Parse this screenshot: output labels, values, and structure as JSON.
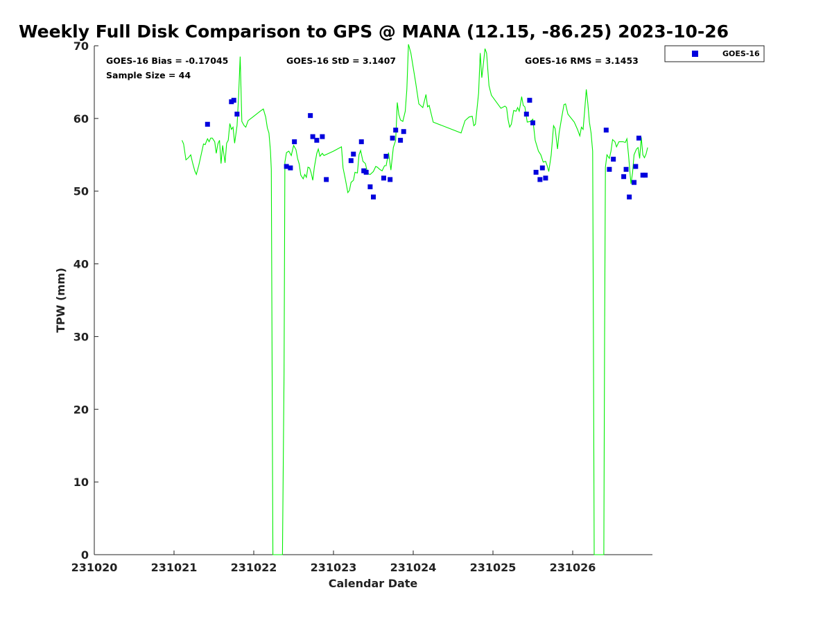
{
  "chart_data": {
    "type": "scatter",
    "title": "Weekly Full Disk Comparison to GPS @ MANA (12.15, -86.25) 2023-10-26",
    "xlabel": "Calendar Date",
    "ylabel": "TPW (mm)",
    "xlim": [
      231020,
      231027
    ],
    "ylim": [
      0,
      70
    ],
    "x_ticks": [
      "231020",
      "231021",
      "231022",
      "231023",
      "231024",
      "231025",
      "231026"
    ],
    "y_ticks": [
      "0",
      "10",
      "20",
      "30",
      "40",
      "50",
      "60",
      "70"
    ],
    "grid": false,
    "legend_position": "outside-top-right",
    "stats": {
      "bias": "GOES-16 Bias = -0.17045",
      "std": "GOES-16 StD = 3.1407",
      "rms": "GOES-16 RMS = 3.1453",
      "sample": "Sample Size = 44"
    },
    "colors": {
      "gps": "#00ee00",
      "goes": "#0000dd"
    },
    "series": [
      {
        "name": "GOES-16",
        "style": "markers",
        "color": "#0000dd",
        "points": [
          [
            231021.42,
            59.2
          ],
          [
            231021.72,
            62.3
          ],
          [
            231021.75,
            62.5
          ],
          [
            231021.79,
            60.6
          ],
          [
            231022.41,
            53.4
          ],
          [
            231022.46,
            53.2
          ],
          [
            231022.51,
            56.8
          ],
          [
            231022.71,
            60.4
          ],
          [
            231022.74,
            57.5
          ],
          [
            231022.79,
            57.0
          ],
          [
            231022.86,
            57.5
          ],
          [
            231022.91,
            51.6
          ],
          [
            231023.22,
            54.2
          ],
          [
            231023.25,
            55.1
          ],
          [
            231023.35,
            56.8
          ],
          [
            231023.38,
            52.8
          ],
          [
            231023.41,
            52.6
          ],
          [
            231023.46,
            50.6
          ],
          [
            231023.5,
            49.2
          ],
          [
            231023.63,
            51.8
          ],
          [
            231023.66,
            54.8
          ],
          [
            231023.71,
            51.6
          ],
          [
            231023.74,
            57.3
          ],
          [
            231023.78,
            58.4
          ],
          [
            231023.84,
            57.0
          ],
          [
            231023.88,
            58.2
          ],
          [
            231025.42,
            60.6
          ],
          [
            231025.46,
            62.5
          ],
          [
            231025.5,
            59.4
          ],
          [
            231025.54,
            52.6
          ],
          [
            231025.59,
            51.6
          ],
          [
            231025.62,
            53.2
          ],
          [
            231025.66,
            51.8
          ],
          [
            231026.42,
            58.4
          ],
          [
            231026.46,
            53.0
          ],
          [
            231026.51,
            54.4
          ],
          [
            231026.64,
            52.0
          ],
          [
            231026.67,
            53.0
          ],
          [
            231026.71,
            49.2
          ],
          [
            231026.77,
            51.2
          ],
          [
            231026.79,
            53.4
          ],
          [
            231026.83,
            57.3
          ],
          [
            231026.88,
            52.2
          ],
          [
            231026.91,
            52.2
          ]
        ]
      },
      {
        "style": "line",
        "color": "#00ee00",
        "points": [
          [
            231021.1,
            57.0
          ],
          [
            231021.12,
            56.5
          ],
          [
            231021.15,
            54.3
          ],
          [
            231021.18,
            54.6
          ],
          [
            231021.21,
            55.0
          ],
          [
            231021.23,
            54.0
          ],
          [
            231021.26,
            52.8
          ],
          [
            231021.28,
            52.3
          ],
          [
            231021.31,
            53.5
          ],
          [
            231021.34,
            55.0
          ],
          [
            231021.37,
            56.5
          ],
          [
            231021.39,
            56.4
          ],
          [
            231021.42,
            57.2
          ],
          [
            231021.44,
            56.8
          ],
          [
            231021.46,
            57.3
          ],
          [
            231021.48,
            57.3
          ],
          [
            231021.51,
            56.8
          ],
          [
            231021.53,
            55.2
          ],
          [
            231021.55,
            56.5
          ],
          [
            231021.57,
            57.0
          ],
          [
            231021.59,
            53.8
          ],
          [
            231021.61,
            56.3
          ],
          [
            231021.64,
            53.9
          ],
          [
            231021.66,
            56.6
          ],
          [
            231021.68,
            57.0
          ],
          [
            231021.7,
            59.3
          ],
          [
            231021.72,
            58.5
          ],
          [
            231021.74,
            58.8
          ],
          [
            231021.76,
            56.6
          ],
          [
            231021.79,
            59.0
          ],
          [
            231021.81,
            63.0
          ],
          [
            231021.83,
            68.5
          ],
          [
            231021.85,
            59.6
          ],
          [
            231021.88,
            59.0
          ],
          [
            231021.9,
            58.8
          ],
          [
            231021.93,
            59.7
          ],
          [
            231022.0,
            60.3
          ],
          [
            231022.08,
            61.0
          ],
          [
            231022.12,
            61.3
          ],
          [
            231022.15,
            60.2
          ],
          [
            231022.17,
            58.7
          ],
          [
            231022.19,
            58.0
          ],
          [
            231022.21,
            55.5
          ],
          [
            231022.22,
            53.0
          ],
          [
            231022.23,
            25.0
          ],
          [
            231022.24,
            0.0
          ],
          [
            231022.36,
            0.0
          ],
          [
            231022.38,
            25.0
          ],
          [
            231022.39,
            54.0
          ],
          [
            231022.41,
            55.3
          ],
          [
            231022.44,
            55.5
          ],
          [
            231022.47,
            54.9
          ],
          [
            231022.5,
            56.3
          ],
          [
            231022.53,
            55.7
          ],
          [
            231022.55,
            54.5
          ],
          [
            231022.57,
            53.7
          ],
          [
            231022.59,
            52.2
          ],
          [
            231022.62,
            51.7
          ],
          [
            231022.64,
            52.3
          ],
          [
            231022.66,
            51.9
          ],
          [
            231022.68,
            53.3
          ],
          [
            231022.7,
            53.2
          ],
          [
            231022.72,
            52.5
          ],
          [
            231022.74,
            51.5
          ],
          [
            231022.76,
            53.3
          ],
          [
            231022.79,
            55.2
          ],
          [
            231022.81,
            55.8
          ],
          [
            231022.83,
            54.8
          ],
          [
            231022.86,
            55.2
          ],
          [
            231022.88,
            54.9
          ],
          [
            231022.92,
            55.1
          ],
          [
            231023.0,
            55.5
          ],
          [
            231023.1,
            56.1
          ],
          [
            231023.12,
            53.2
          ],
          [
            231023.15,
            51.6
          ],
          [
            231023.18,
            49.8
          ],
          [
            231023.2,
            50.1
          ],
          [
            231023.22,
            51.2
          ],
          [
            231023.25,
            51.5
          ],
          [
            231023.27,
            52.6
          ],
          [
            231023.3,
            52.5
          ],
          [
            231023.32,
            55.0
          ],
          [
            231023.34,
            55.6
          ],
          [
            231023.37,
            54.1
          ],
          [
            231023.4,
            53.8
          ],
          [
            231023.43,
            52.4
          ],
          [
            231023.46,
            52.3
          ],
          [
            231023.5,
            52.7
          ],
          [
            231023.53,
            53.4
          ],
          [
            231023.55,
            53.3
          ],
          [
            231023.58,
            53.0
          ],
          [
            231023.61,
            52.8
          ],
          [
            231023.64,
            53.5
          ],
          [
            231023.66,
            53.5
          ],
          [
            231023.69,
            55.3
          ],
          [
            231023.72,
            52.9
          ],
          [
            231023.75,
            56.0
          ],
          [
            231023.78,
            57.0
          ],
          [
            231023.8,
            62.2
          ],
          [
            231023.82,
            60.5
          ],
          [
            231023.84,
            59.8
          ],
          [
            231023.87,
            59.6
          ],
          [
            231023.9,
            61.0
          ],
          [
            231023.92,
            64.0
          ],
          [
            231023.94,
            70.2
          ],
          [
            231023.97,
            69.0
          ],
          [
            231024.0,
            67.0
          ],
          [
            231024.03,
            65.0
          ],
          [
            231024.07,
            62.0
          ],
          [
            231024.12,
            61.5
          ],
          [
            231024.16,
            63.3
          ],
          [
            231024.18,
            61.6
          ],
          [
            231024.2,
            61.8
          ],
          [
            231024.25,
            59.5
          ],
          [
            231024.6,
            58.0
          ],
          [
            231024.65,
            59.7
          ],
          [
            231024.7,
            60.2
          ],
          [
            231024.74,
            60.3
          ],
          [
            231024.76,
            59.0
          ],
          [
            231024.78,
            59.2
          ],
          [
            231024.82,
            63.5
          ],
          [
            231024.84,
            69.0
          ],
          [
            231024.86,
            65.6
          ],
          [
            231024.88,
            67.5
          ],
          [
            231024.9,
            69.6
          ],
          [
            231024.92,
            69.0
          ],
          [
            231024.95,
            64.5
          ],
          [
            231024.98,
            63.2
          ],
          [
            231025.06,
            62.0
          ],
          [
            231025.1,
            61.4
          ],
          [
            231025.15,
            61.7
          ],
          [
            231025.17,
            61.5
          ],
          [
            231025.19,
            59.8
          ],
          [
            231025.21,
            58.8
          ],
          [
            231025.23,
            59.2
          ],
          [
            231025.26,
            61.1
          ],
          [
            231025.29,
            61.0
          ],
          [
            231025.31,
            61.5
          ],
          [
            231025.33,
            61.0
          ],
          [
            231025.36,
            63.0
          ],
          [
            231025.38,
            61.8
          ],
          [
            231025.4,
            61.6
          ],
          [
            231025.43,
            59.5
          ],
          [
            231025.47,
            59.6
          ],
          [
            231025.5,
            59.9
          ],
          [
            231025.53,
            57.0
          ],
          [
            231025.57,
            55.5
          ],
          [
            231025.6,
            55.0
          ],
          [
            231025.63,
            54.0
          ],
          [
            231025.66,
            54.1
          ],
          [
            231025.68,
            53.5
          ],
          [
            231025.7,
            52.7
          ],
          [
            231025.73,
            55.0
          ],
          [
            231025.76,
            59.0
          ],
          [
            231025.78,
            58.6
          ],
          [
            231025.81,
            55.8
          ],
          [
            231025.83,
            58.0
          ],
          [
            231025.86,
            60.0
          ],
          [
            231025.89,
            61.9
          ],
          [
            231025.91,
            62.0
          ],
          [
            231025.94,
            60.6
          ],
          [
            231026.02,
            59.5
          ],
          [
            231026.06,
            58.5
          ],
          [
            231026.09,
            57.6
          ],
          [
            231026.11,
            58.8
          ],
          [
            231026.13,
            58.5
          ],
          [
            231026.15,
            61.0
          ],
          [
            231026.17,
            64.0
          ],
          [
            231026.19,
            62.0
          ],
          [
            231026.21,
            59.5
          ],
          [
            231026.23,
            58.0
          ],
          [
            231026.25,
            55.5
          ],
          [
            231026.26,
            30.0
          ],
          [
            231026.27,
            0.0
          ],
          [
            231026.39,
            0.0
          ],
          [
            231026.4,
            30.0
          ],
          [
            231026.41,
            53.3
          ],
          [
            231026.43,
            55.0
          ],
          [
            231026.46,
            54.5
          ],
          [
            231026.48,
            55.5
          ],
          [
            231026.5,
            57.1
          ],
          [
            231026.53,
            56.8
          ],
          [
            231026.55,
            56.1
          ],
          [
            231026.58,
            56.8
          ],
          [
            231026.63,
            56.8
          ],
          [
            231026.66,
            56.7
          ],
          [
            231026.68,
            57.2
          ],
          [
            231026.7,
            55.0
          ],
          [
            231026.73,
            51.0
          ],
          [
            231026.75,
            52.5
          ],
          [
            231026.77,
            55.0
          ],
          [
            231026.8,
            55.8
          ],
          [
            231026.82,
            56.0
          ],
          [
            231026.84,
            54.5
          ],
          [
            231026.86,
            57.4
          ],
          [
            231026.88,
            55.0
          ],
          [
            231026.9,
            54.6
          ],
          [
            231026.92,
            55.1
          ],
          [
            231026.94,
            56.0
          ]
        ]
      }
    ]
  }
}
